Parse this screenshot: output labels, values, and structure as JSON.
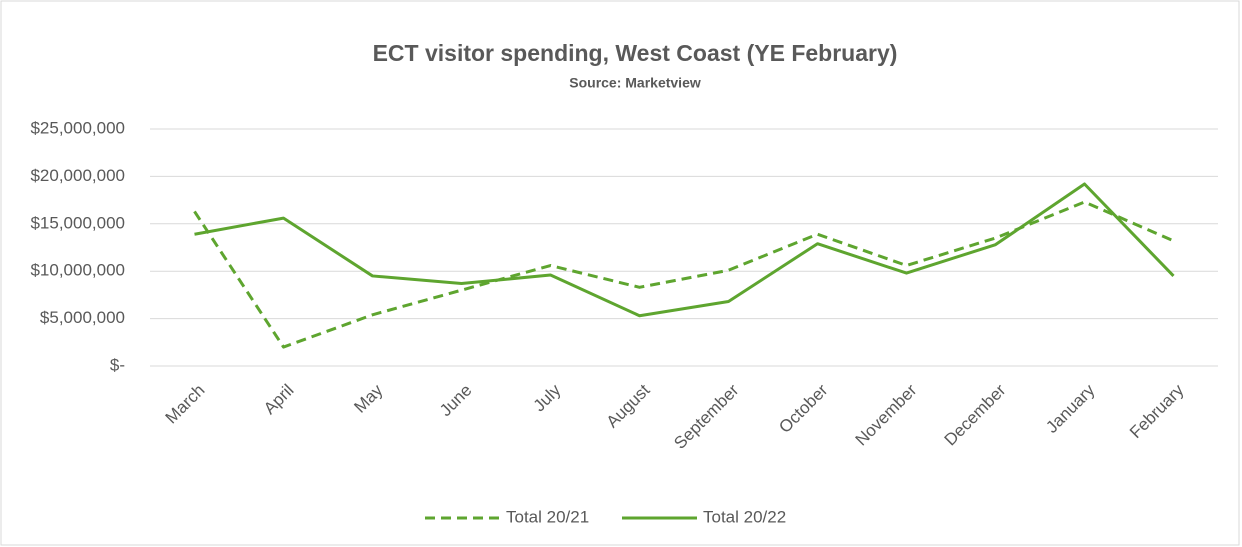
{
  "chart_data": {
    "type": "line",
    "title": "ECT visitor spending, West Coast (YE February)",
    "subtitle": "Source: Marketview",
    "categories": [
      "March",
      "April",
      "May",
      "June",
      "July",
      "August",
      "September",
      "October",
      "November",
      "December",
      "January",
      "February"
    ],
    "series": [
      {
        "name": "Total 20/21",
        "color": "#5ea52f",
        "dash": true,
        "values": [
          16300000,
          2000000,
          5400000,
          8000000,
          10600000,
          8300000,
          10100000,
          13900000,
          10600000,
          13500000,
          17300000,
          13200000
        ]
      },
      {
        "name": "Total 20/22",
        "color": "#5ea52f",
        "dash": false,
        "values": [
          13900000,
          15600000,
          9500000,
          8700000,
          9600000,
          5300000,
          6800000,
          12900000,
          9800000,
          12800000,
          19200000,
          9500000
        ]
      }
    ],
    "ylim": [
      0,
      25000000
    ],
    "yticks": [
      {
        "value": 0,
        "label": "$-"
      },
      {
        "value": 5000000,
        "label": "$5,000,000"
      },
      {
        "value": 10000000,
        "label": "$10,000,000"
      },
      {
        "value": 15000000,
        "label": "$15,000,000"
      },
      {
        "value": 20000000,
        "label": "$20,000,000"
      },
      {
        "value": 25000000,
        "label": "$25,000,000"
      }
    ],
    "grid": true,
    "legend": "bottom"
  }
}
